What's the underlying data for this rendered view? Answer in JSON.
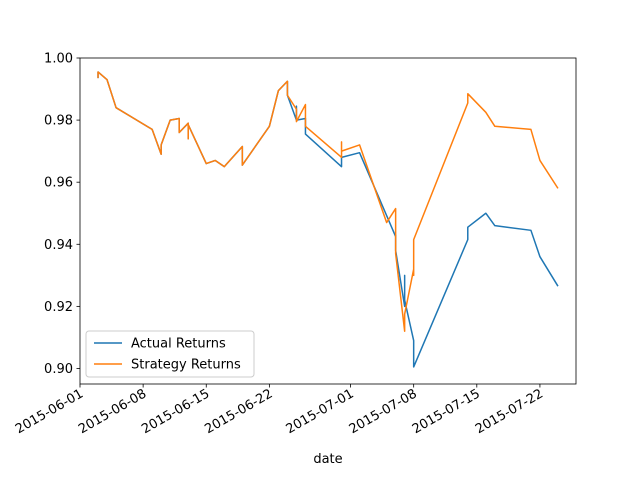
{
  "chart_data": {
    "type": "line",
    "title": "",
    "xlabel": "date",
    "ylabel": "",
    "xlim": [
      "2015-06-01",
      "2015-07-26"
    ],
    "ylim": [
      0.895,
      1.0
    ],
    "x_ticks": [
      "2015-06-01",
      "2015-06-08",
      "2015-06-15",
      "2015-06-22",
      "2015-07-01",
      "2015-07-08",
      "2015-07-15",
      "2015-07-22"
    ],
    "y_ticks": [
      "0.90",
      "0.92",
      "0.94",
      "0.96",
      "0.98",
      "1.00"
    ],
    "grid": false,
    "legend_position": "lower-left",
    "series": [
      {
        "name": "Actual Returns",
        "color": "#1f77b4",
        "points": [
          [
            "2015-06-03",
            0.9935
          ],
          [
            "2015-06-03",
            0.9955
          ],
          [
            "2015-06-04",
            0.993
          ],
          [
            "2015-06-05",
            0.984
          ],
          [
            "2015-06-09",
            0.977
          ],
          [
            "2015-06-10",
            0.969
          ],
          [
            "2015-06-10",
            0.972
          ],
          [
            "2015-06-11",
            0.98
          ],
          [
            "2015-06-12",
            0.9805
          ],
          [
            "2015-06-12",
            0.976
          ],
          [
            "2015-06-13",
            0.979
          ],
          [
            "2015-06-13",
            0.974
          ],
          [
            "2015-06-13",
            0.9785
          ],
          [
            "2015-06-15",
            0.966
          ],
          [
            "2015-06-16",
            0.967
          ],
          [
            "2015-06-17",
            0.965
          ],
          [
            "2015-06-19",
            0.9715
          ],
          [
            "2015-06-19",
            0.9655
          ],
          [
            "2015-06-22",
            0.978
          ],
          [
            "2015-06-23",
            0.9895
          ],
          [
            "2015-06-24",
            0.9925
          ],
          [
            "2015-06-24",
            0.988
          ],
          [
            "2015-06-25",
            0.98
          ],
          [
            "2015-06-25",
            0.9845
          ],
          [
            "2015-06-25",
            0.98
          ],
          [
            "2015-06-26",
            0.9805
          ],
          [
            "2015-06-26",
            0.9755
          ],
          [
            "2015-06-30",
            0.965
          ],
          [
            "2015-06-30",
            0.968
          ],
          [
            "2015-07-02",
            0.9695
          ],
          [
            "2015-07-06",
            0.9425
          ],
          [
            "2015-07-06",
            0.943
          ],
          [
            "2015-07-06",
            0.938
          ],
          [
            "2015-07-07",
            0.92
          ],
          [
            "2015-07-07",
            0.93
          ],
          [
            "2015-07-07",
            0.922
          ],
          [
            "2015-07-08",
            0.909
          ],
          [
            "2015-07-08",
            0.9005
          ],
          [
            "2015-07-14",
            0.9415
          ],
          [
            "2015-07-14",
            0.9455
          ],
          [
            "2015-07-16",
            0.95
          ],
          [
            "2015-07-17",
            0.946
          ],
          [
            "2015-07-21",
            0.9445
          ],
          [
            "2015-07-22",
            0.936
          ],
          [
            "2015-07-24",
            0.9265
          ]
        ]
      },
      {
        "name": "Strategy Returns",
        "color": "#ff7f0e",
        "points": [
          [
            "2015-06-03",
            0.9935
          ],
          [
            "2015-06-03",
            0.9955
          ],
          [
            "2015-06-04",
            0.993
          ],
          [
            "2015-06-05",
            0.984
          ],
          [
            "2015-06-09",
            0.977
          ],
          [
            "2015-06-10",
            0.969
          ],
          [
            "2015-06-10",
            0.972
          ],
          [
            "2015-06-11",
            0.98
          ],
          [
            "2015-06-12",
            0.9805
          ],
          [
            "2015-06-12",
            0.976
          ],
          [
            "2015-06-13",
            0.979
          ],
          [
            "2015-06-13",
            0.974
          ],
          [
            "2015-06-13",
            0.9785
          ],
          [
            "2015-06-15",
            0.966
          ],
          [
            "2015-06-16",
            0.967
          ],
          [
            "2015-06-17",
            0.965
          ],
          [
            "2015-06-19",
            0.9715
          ],
          [
            "2015-06-19",
            0.9655
          ],
          [
            "2015-06-22",
            0.978
          ],
          [
            "2015-06-23",
            0.9895
          ],
          [
            "2015-06-24",
            0.9925
          ],
          [
            "2015-06-24",
            0.988
          ],
          [
            "2015-06-25",
            0.9835
          ],
          [
            "2015-06-25",
            0.9795
          ],
          [
            "2015-06-26",
            0.985
          ],
          [
            "2015-06-26",
            0.978
          ],
          [
            "2015-06-30",
            0.968
          ],
          [
            "2015-06-30",
            0.973
          ],
          [
            "2015-06-30",
            0.97
          ],
          [
            "2015-07-02",
            0.972
          ],
          [
            "2015-07-05",
            0.947
          ],
          [
            "2015-07-06",
            0.9515
          ],
          [
            "2015-07-06",
            0.937
          ],
          [
            "2015-07-07",
            0.912
          ],
          [
            "2015-07-07",
            0.9175
          ],
          [
            "2015-07-08",
            0.932
          ],
          [
            "2015-07-08",
            0.93
          ],
          [
            "2015-07-08",
            0.9415
          ],
          [
            "2015-07-14",
            0.9855
          ],
          [
            "2015-07-14",
            0.9885
          ],
          [
            "2015-07-16",
            0.9825
          ],
          [
            "2015-07-17",
            0.978
          ],
          [
            "2015-07-21",
            0.977
          ],
          [
            "2015-07-22",
            0.967
          ],
          [
            "2015-07-24",
            0.958
          ]
        ]
      }
    ]
  }
}
